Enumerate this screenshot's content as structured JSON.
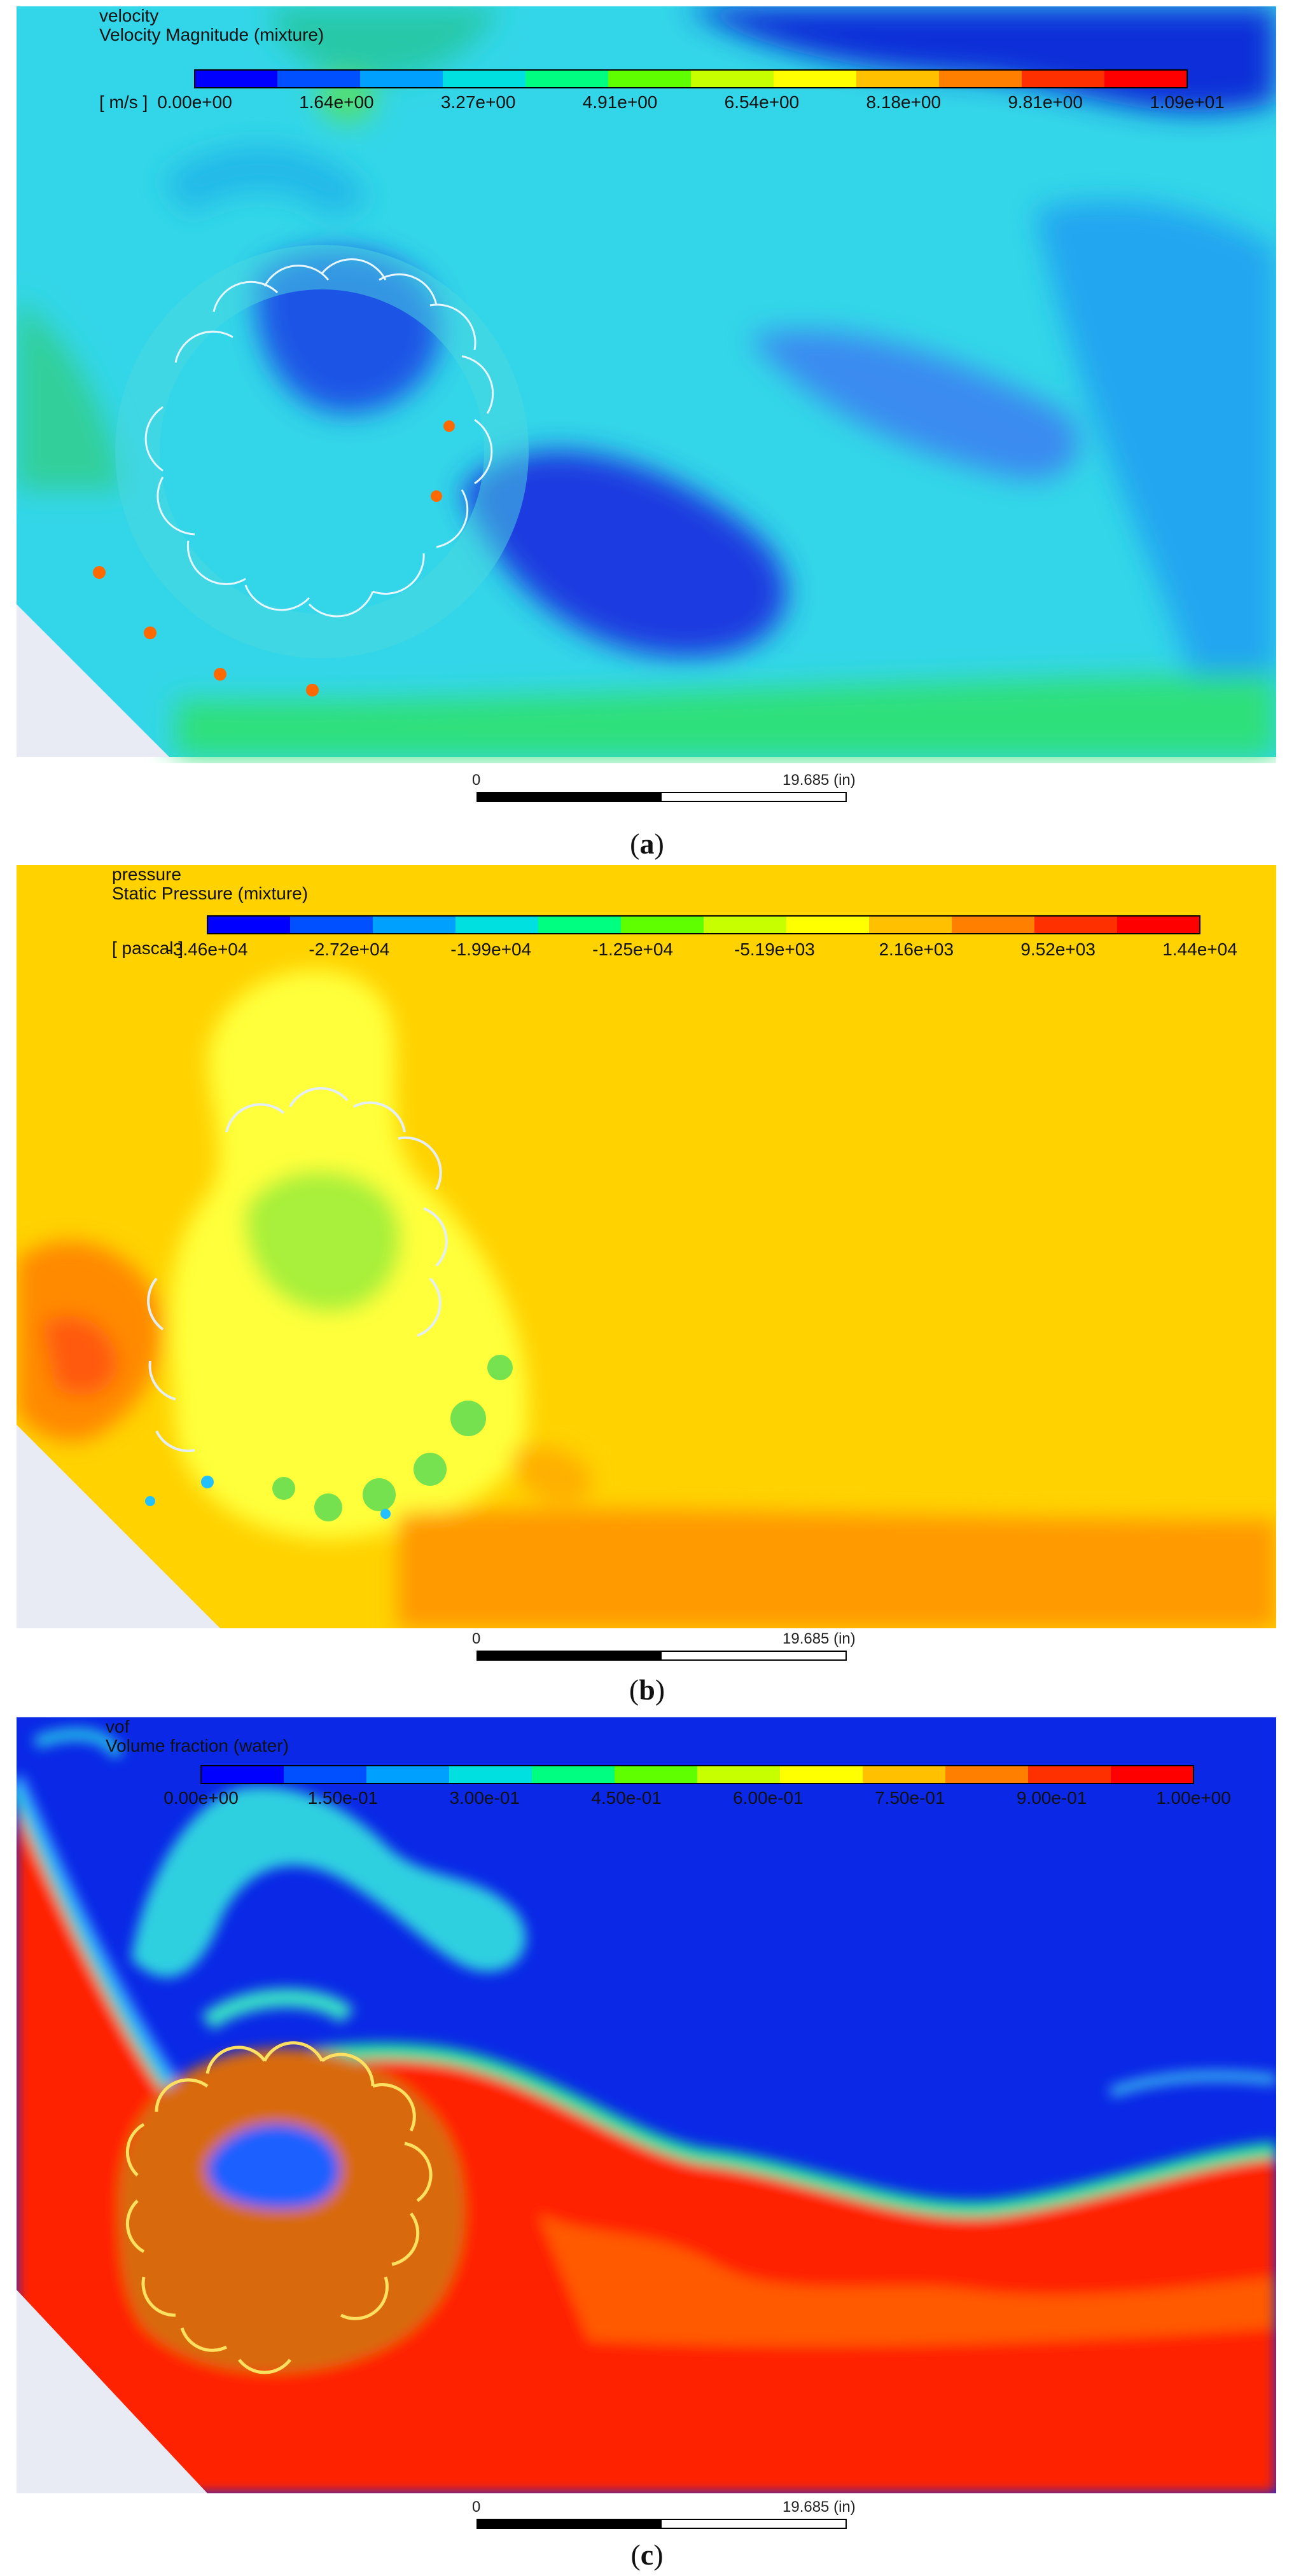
{
  "panels": [
    {
      "id": "a",
      "variable": "velocity",
      "quantity": "Velocity Magnitude (mixture)",
      "unit": "[ m/s ]",
      "ticks": [
        "0.00e+00",
        "1.64e+00",
        "3.27e+00",
        "4.91e+00",
        "6.54e+00",
        "8.18e+00",
        "9.81e+00",
        "1.09e+01"
      ],
      "colormap": [
        "#0000ff",
        "#0050ff",
        "#00a0ff",
        "#00e0e0",
        "#00ff80",
        "#60ff00",
        "#c8ff00",
        "#ffff00",
        "#ffc000",
        "#ff8000",
        "#ff3000",
        "#ff0000"
      ],
      "scale": {
        "zero": "0",
        "length": "19.685 (in)"
      },
      "caption_letter": "a"
    },
    {
      "id": "b",
      "variable": "pressure",
      "quantity": "Static Pressure (mixture)",
      "unit": "[ pascal ]",
      "ticks": [
        "-3.46e+04",
        "-2.72e+04",
        "-1.99e+04",
        "-1.25e+04",
        "-5.19e+03",
        "2.16e+03",
        "9.52e+03",
        "1.44e+04"
      ],
      "colormap": [
        "#0000ff",
        "#0050ff",
        "#00a0ff",
        "#00e0e0",
        "#00ff80",
        "#60ff00",
        "#c8ff00",
        "#ffff00",
        "#ffc000",
        "#ff8000",
        "#ff3000",
        "#ff0000"
      ],
      "scale": {
        "zero": "0",
        "length": "19.685 (in)"
      },
      "caption_letter": "b"
    },
    {
      "id": "c",
      "variable": "vof",
      "quantity": "Volume fraction (water)",
      "unit": "",
      "ticks": [
        "0.00e+00",
        "1.50e-01",
        "3.00e-01",
        "4.50e-01",
        "6.00e-01",
        "7.50e-01",
        "9.00e-01",
        "1.00e+00"
      ],
      "colormap": [
        "#0000ff",
        "#0050ff",
        "#00a0ff",
        "#00e0e0",
        "#00ff80",
        "#60ff00",
        "#c8ff00",
        "#ffff00",
        "#ffc000",
        "#ff8000",
        "#ff3000",
        "#ff0000"
      ],
      "scale": {
        "zero": "0",
        "length": "19.685 (in)"
      },
      "caption_letter": "c"
    }
  ]
}
